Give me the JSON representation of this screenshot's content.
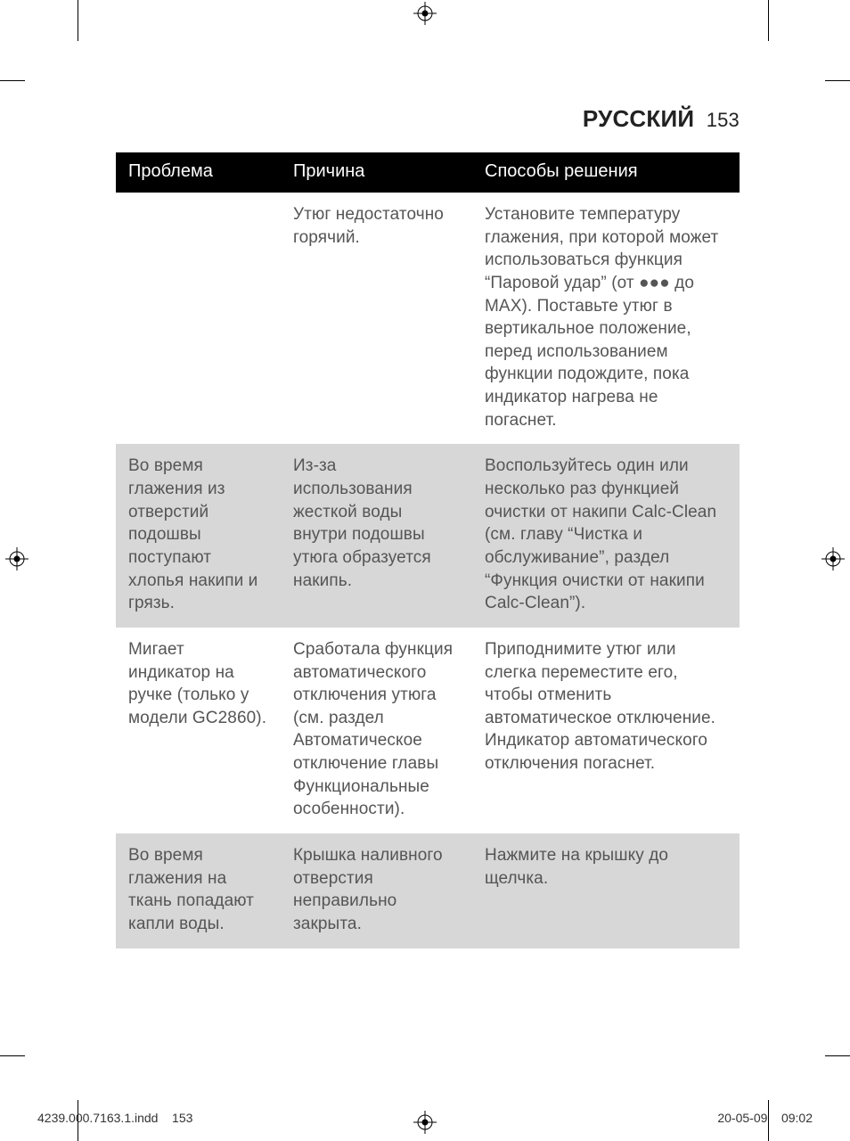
{
  "header": {
    "language": "РУССКИЙ",
    "page_number": "153"
  },
  "table": {
    "headers": {
      "problem": "Проблема",
      "cause": "Причина",
      "solution": "Способы решения"
    },
    "rows": [
      {
        "alt": false,
        "problem": "",
        "cause": "Утюг недостаточно горячий.",
        "solution": "Установите температуру глажения, при которой может использоваться функция “Паровой удар” (от ●●● до MAX). Поставьте утюг в вертикальное положение, перед использованием функции подождите, пока индикатор нагрева не погаснет."
      },
      {
        "alt": true,
        "problem": "Во время глажения из отверстий подошвы поступают хлопья накипи и грязь.",
        "cause": "Из-за использования жесткой воды внутри подошвы утюга образуется накипь.",
        "solution": "Воспользуйтесь один или несколько раз функцией очистки от накипи Calc-Clean (см. главу “Чистка и обслуживание”, раздел “Функция очистки от накипи Calc-Clean”)."
      },
      {
        "alt": false,
        "problem": "Мигает индикатор на ручке (только у модели GC2860).",
        "cause": "Сработала функция автоматического отключения утюга (см. раздел Автоматическое отключение главы Функциональные особенности).",
        "solution": "Приподнимите утюг или слегка переместите его, чтобы отменить автоматическое отключение. Индикатор автоматического отключения погаснет."
      },
      {
        "alt": true,
        "problem": "Во время глажения на ткань попадают капли воды.",
        "cause": "Крышка наливного отверстия неправильно закрыта.",
        "solution": "Нажмите на крышку до щелчка."
      }
    ]
  },
  "footer": {
    "left_file": "4239.000.7163.1.indd",
    "left_page": "153",
    "right_date": "20-05-09",
    "right_time": "09:02"
  }
}
